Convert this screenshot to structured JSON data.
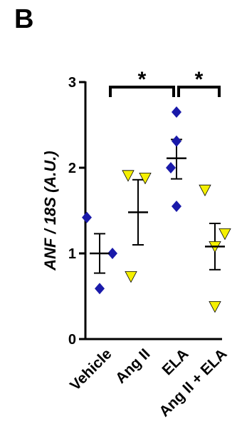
{
  "panel_label": "B",
  "chart_data": {
    "type": "scatter",
    "ylabel": "ANF / 18S (A.U.)",
    "ylim": [
      0,
      3
    ],
    "yticks": [
      0,
      1,
      2,
      3
    ],
    "categories": [
      "Vehicle",
      "Ang II",
      "ELA",
      "Ang II + ELA"
    ],
    "groups": [
      {
        "category": "Vehicle",
        "marker": "diamond",
        "color": "#1a1aaa",
        "points": [
          1.42,
          1.0,
          0.59
        ],
        "mean": 1.0,
        "sem_low": 0.77,
        "sem_high": 1.23
      },
      {
        "category": "Ang II",
        "marker": "triangle-down",
        "color": "#f5f000",
        "points": [
          1.91,
          1.88,
          0.73
        ],
        "mean": 1.48,
        "sem_low": 1.1,
        "sem_high": 1.86
      },
      {
        "category": "ELA",
        "marker": "diamond",
        "color": "#1a1aaa",
        "points": [
          2.65,
          2.31,
          2.0,
          1.55
        ],
        "mean": 2.11,
        "sem_low": 1.87,
        "sem_high": 2.33
      },
      {
        "category": "Ang II + ELA",
        "marker": "triangle-down",
        "color": "#f5f000",
        "points": [
          1.74,
          1.23,
          1.08,
          0.38
        ],
        "mean": 1.08,
        "sem_low": 0.81,
        "sem_high": 1.35
      }
    ],
    "significance": [
      {
        "from": 0,
        "to": 2,
        "label": "*"
      },
      {
        "from": 2,
        "to": 3,
        "label": "*"
      }
    ]
  }
}
